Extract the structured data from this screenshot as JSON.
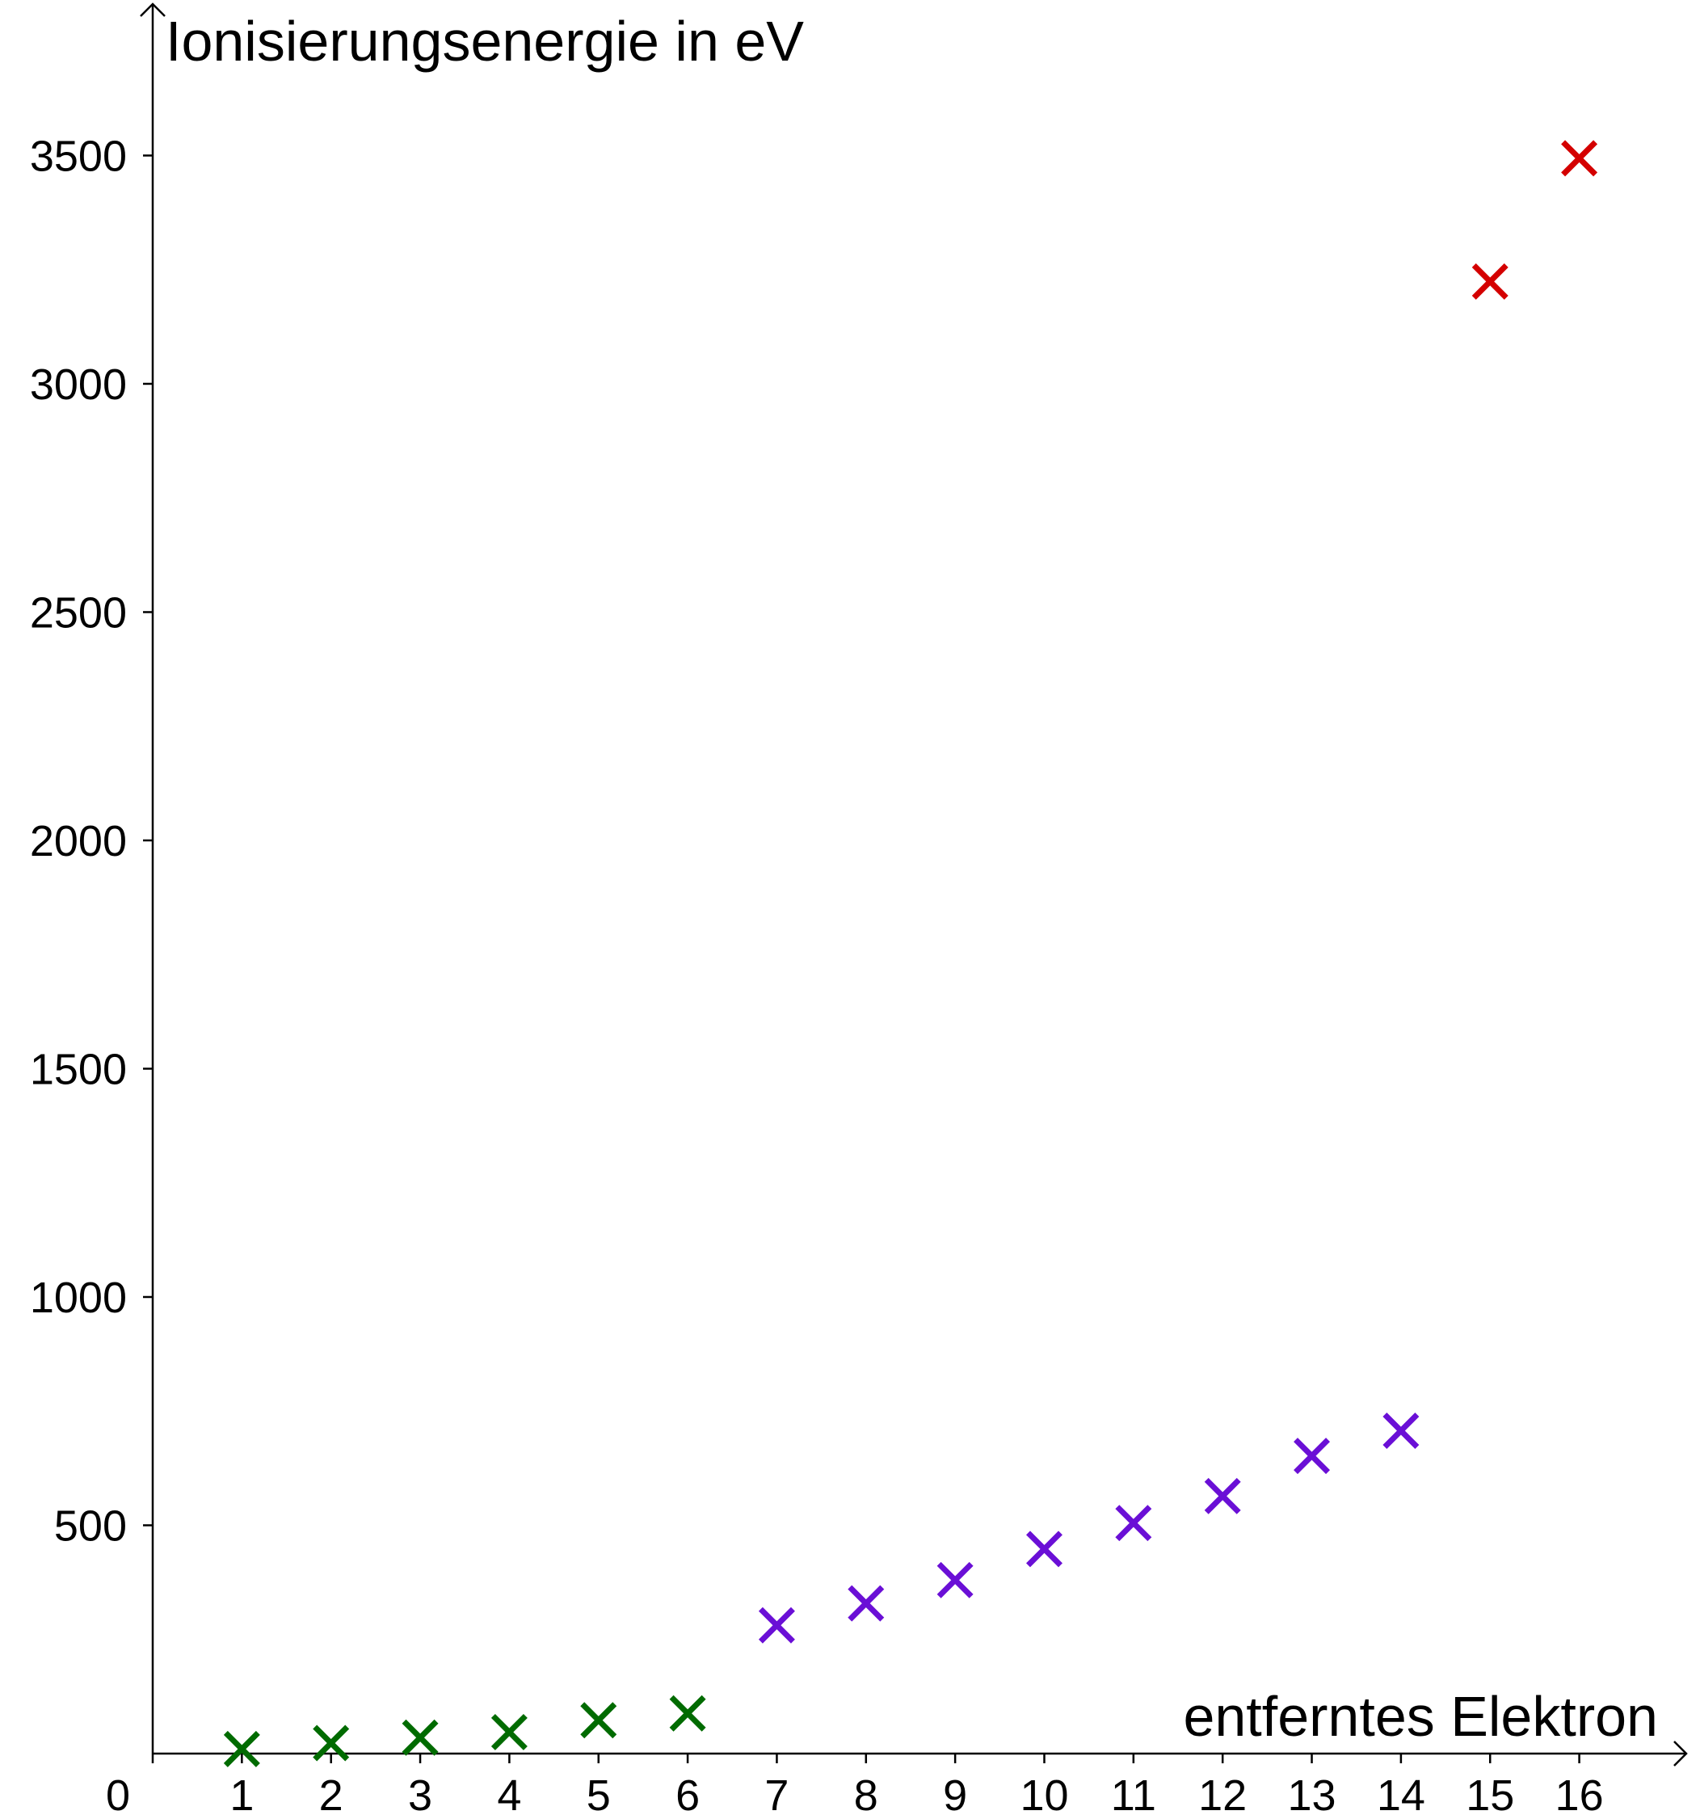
{
  "chart_data": {
    "type": "scatter",
    "x_label": "entferntes Elektron",
    "y_label": "Ionisierungsenergie in eV",
    "series": [
      {
        "color": "#006b00",
        "x": [
          1,
          2,
          3,
          4,
          5,
          6
        ],
        "values": [
          10,
          23,
          35,
          47,
          73,
          88
        ]
      },
      {
        "color": "#6a0fd6",
        "x": [
          7,
          8,
          9,
          10,
          11,
          12,
          13,
          14
        ],
        "values": [
          281,
          329,
          380,
          448,
          505,
          564,
          652,
          707
        ]
      },
      {
        "color": "#d40000",
        "x": [
          15,
          16
        ],
        "values": [
          3224,
          3494
        ]
      }
    ],
    "xlim": [
      0,
      17.2
    ],
    "ylim": [
      0,
      3830
    ],
    "xticks": [
      0,
      1,
      2,
      3,
      4,
      5,
      6,
      7,
      8,
      9,
      10,
      11,
      12,
      13,
      14,
      15,
      16
    ],
    "yticks": [
      500,
      1000,
      1500,
      2000,
      2500,
      3000,
      3500
    ],
    "marker": "x"
  }
}
